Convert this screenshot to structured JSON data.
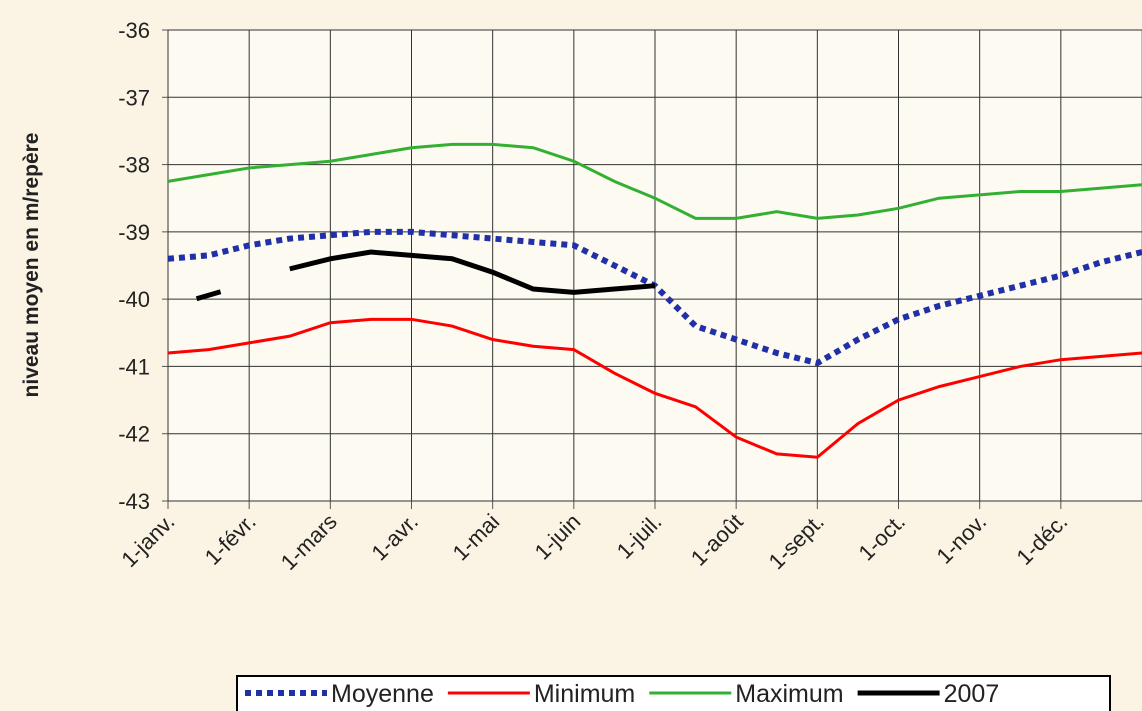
{
  "chart_data": {
    "type": "line",
    "y_label": "niveau moyen en m/repère",
    "categories": [
      "1-janv.",
      null,
      "1-févr.",
      null,
      "1-mars",
      null,
      "1-avr.",
      null,
      "1-mai",
      null,
      "1-juin",
      null,
      "1-juil.",
      null,
      "1-août",
      null,
      "1-sept.",
      null,
      "1-oct.",
      null,
      "1-nov.",
      null,
      "1-déc.",
      null,
      null
    ],
    "ylim": [
      -43,
      -36
    ],
    "yticks": [
      -43,
      -42,
      -41,
      -40,
      -39,
      -38,
      -37,
      -36
    ],
    "grid": true,
    "legend": "bottom",
    "series": [
      {
        "name": "Moyenne",
        "color": "#2230a8",
        "style": "dotted",
        "values": [
          -39.4,
          -39.35,
          -39.2,
          -39.1,
          -39.05,
          -39.0,
          -39.0,
          -39.05,
          -39.1,
          -39.15,
          -39.2,
          -39.5,
          -39.8,
          -40.4,
          -40.6,
          -40.8,
          -40.95,
          -40.6,
          -40.3,
          -40.1,
          -39.95,
          -39.8,
          -39.65,
          -39.45,
          -39.3
        ]
      },
      {
        "name": "Minimum",
        "color": "#ff0000",
        "style": "solid",
        "values": [
          -40.8,
          -40.75,
          -40.65,
          -40.55,
          -40.35,
          -40.3,
          -40.3,
          -40.4,
          -40.6,
          -40.7,
          -40.75,
          -41.1,
          -41.4,
          -41.6,
          -42.05,
          -42.3,
          -42.35,
          -41.85,
          -41.5,
          -41.3,
          -41.15,
          -41.0,
          -40.9,
          -40.85,
          -40.8
        ]
      },
      {
        "name": "Maximum",
        "color": "#33b033",
        "style": "solid",
        "values": [
          -38.25,
          -38.15,
          -38.05,
          -38.0,
          -37.95,
          -37.85,
          -37.75,
          -37.7,
          -37.7,
          -37.75,
          -37.95,
          -38.25,
          -38.5,
          -38.8,
          -38.8,
          -38.7,
          -38.8,
          -38.75,
          -38.65,
          -38.5,
          -38.45,
          -38.4,
          -38.4,
          -38.35,
          -38.3
        ]
      },
      {
        "name": "2007",
        "color": "#000000",
        "style": "solid",
        "values": [
          null,
          -39.95,
          null,
          -39.55,
          -39.4,
          -39.3,
          -39.35,
          -39.4,
          -39.6,
          -39.85,
          -39.9,
          -39.85,
          -39.8,
          null,
          null,
          null,
          null,
          null,
          null,
          null,
          null,
          null,
          null,
          null,
          null
        ]
      }
    ]
  }
}
